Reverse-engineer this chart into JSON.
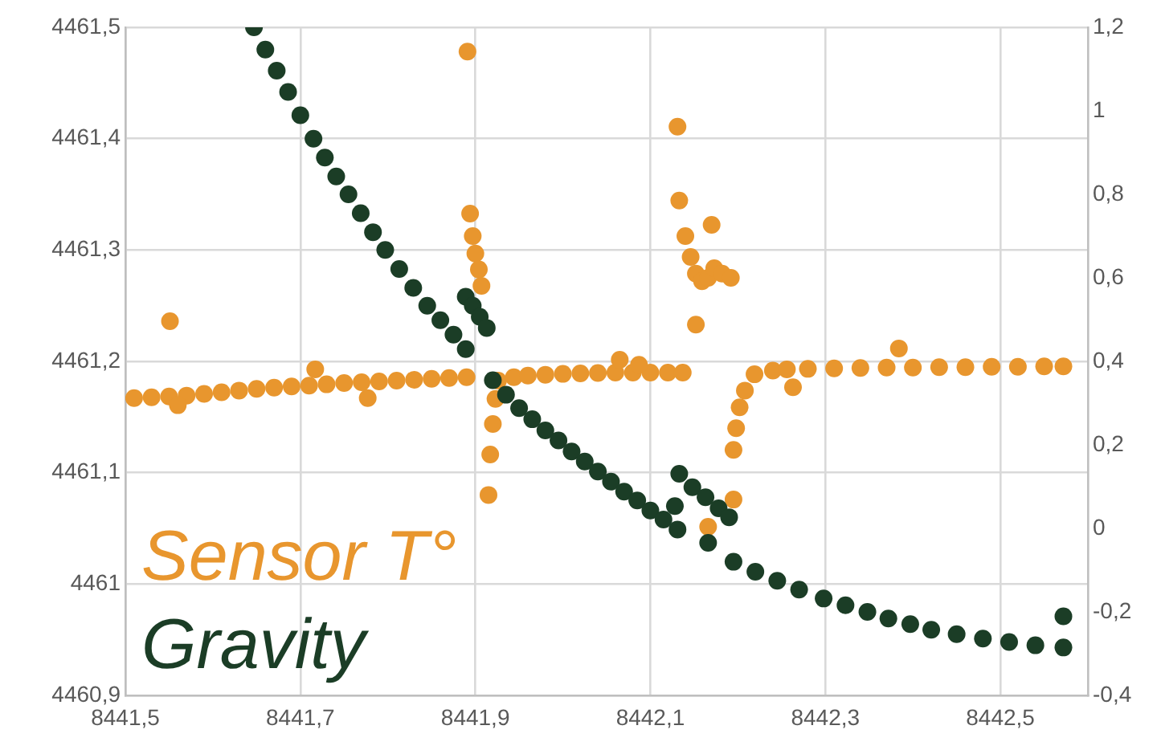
{
  "chart_data": {
    "type": "scatter",
    "marker": "circle",
    "grid": true,
    "xlim": [
      8441.5,
      8442.6
    ],
    "xticks": [
      {
        "value": 8441.5,
        "label": "8441,5"
      },
      {
        "value": 8441.7,
        "label": "8441,7"
      },
      {
        "value": 8441.9,
        "label": "8441,9"
      },
      {
        "value": 8442.1,
        "label": "8442,1"
      },
      {
        "value": 8442.3,
        "label": "8442,3"
      },
      {
        "value": 8442.5,
        "label": "8442,5"
      }
    ],
    "ylim": [
      4460.9,
      4461.5
    ],
    "yticks": [
      {
        "value": 4460.9,
        "label": "4460,9"
      },
      4461,
      {
        "value": 4461.1,
        "label": "4461,1"
      },
      {
        "value": 4461.2,
        "label": "4461,2"
      },
      {
        "value": 4461.3,
        "label": "4461,3"
      },
      {
        "value": 4461.4,
        "label": "4461,4"
      },
      {
        "value": 4461.5,
        "label": "4461,5"
      }
    ],
    "y2lim": [
      -0.4,
      1.2
    ],
    "y2ticks": [
      {
        "value": -0.4,
        "label": "-0,4"
      },
      {
        "value": -0.2,
        "label": "-0,2"
      },
      0,
      {
        "value": 0.2,
        "label": "0,2"
      },
      {
        "value": 0.4,
        "label": "0,4"
      },
      {
        "value": 0.6,
        "label": "0,6"
      },
      {
        "value": 0.8,
        "label": "0,8"
      },
      1,
      {
        "value": 1.2,
        "label": "1,2"
      }
    ],
    "series": [
      {
        "name": "Sensor T°",
        "color": "#e8962e",
        "axis": "y2",
        "x": [
          8441.51,
          8441.53,
          8441.55,
          8441.57,
          8441.59,
          8441.61,
          8441.63,
          8441.65,
          8441.67,
          8441.69,
          8441.71,
          8441.73,
          8441.75,
          8441.77,
          8441.79,
          8441.81,
          8441.83,
          8441.85,
          8441.87,
          8441.89,
          8441.551,
          8441.717,
          8441.777,
          8441.891,
          8441.56,
          8441.894,
          8441.897,
          8441.9,
          8441.904,
          8441.907,
          8441.915,
          8441.917,
          8441.92,
          8441.923,
          8441.926,
          8441.944,
          8441.96,
          8441.98,
          8442.0,
          8442.02,
          8442.04,
          8442.06,
          8442.08,
          8442.1,
          8442.12,
          8442.137,
          8442.065,
          8442.087,
          8442.131,
          8442.133,
          8442.14,
          8442.146,
          8442.152,
          8442.159,
          8442.166,
          8442.173,
          8442.182,
          8442.192,
          8442.17,
          8442.152,
          8442.195,
          8442.166,
          8442.195,
          8442.198,
          8442.202,
          8442.208,
          8442.219,
          8442.24,
          8442.256,
          8442.28,
          8442.31,
          8442.34,
          8442.37,
          8442.4,
          8442.43,
          8442.46,
          8442.49,
          8442.52,
          8442.55,
          8442.572,
          8442.263,
          8442.384
        ],
        "values": [
          0.312,
          0.314,
          0.316,
          0.318,
          0.322,
          0.326,
          0.33,
          0.334,
          0.337,
          0.34,
          0.342,
          0.345,
          0.348,
          0.35,
          0.352,
          0.354,
          0.356,
          0.358,
          0.36,
          0.362,
          0.496,
          0.381,
          0.312,
          1.142,
          0.295,
          0.754,
          0.7,
          0.658,
          0.62,
          0.581,
          0.08,
          0.177,
          0.25,
          0.31,
          0.354,
          0.362,
          0.366,
          0.368,
          0.37,
          0.371,
          0.372,
          0.373,
          0.373,
          0.373,
          0.373,
          0.373,
          0.404,
          0.392,
          0.962,
          0.785,
          0.7,
          0.65,
          0.61,
          0.592,
          0.6,
          0.623,
          0.61,
          0.6,
          0.727,
          0.488,
          0.069,
          0.004,
          0.188,
          0.24,
          0.29,
          0.33,
          0.369,
          0.378,
          0.381,
          0.382,
          0.383,
          0.384,
          0.385,
          0.385,
          0.386,
          0.386,
          0.387,
          0.387,
          0.388,
          0.388,
          0.338,
          0.431
        ]
      },
      {
        "name": "Gravity",
        "color": "#1b3d26",
        "x": [
          8441.647,
          8441.66,
          8441.673,
          8441.686,
          8441.7,
          8441.715,
          8441.728,
          8441.741,
          8441.755,
          8441.769,
          8441.783,
          8441.797,
          8441.813,
          8441.829,
          8441.845,
          8441.86,
          8441.875,
          8441.889,
          8441.889,
          8441.897,
          8441.905,
          8441.913,
          8441.92,
          8441.935,
          8441.95,
          8441.965,
          8441.98,
          8441.995,
          8442.01,
          8442.025,
          8442.04,
          8442.055,
          8442.07,
          8442.085,
          8442.1,
          8442.115,
          8442.131,
          8442.128,
          8442.133,
          8442.148,
          8442.163,
          8442.178,
          8442.19,
          8442.166,
          8442.195,
          8442.22,
          8442.245,
          8442.27,
          8442.298,
          8442.323,
          8442.348,
          8442.372,
          8442.397,
          8442.421,
          8442.45,
          8442.48,
          8442.51,
          8442.54,
          8442.572,
          8442.572
        ],
        "values": [
          4461.5,
          4461.48,
          4461.461,
          4461.442,
          4461.421,
          4461.4,
          4461.383,
          4461.366,
          4461.35,
          4461.333,
          4461.316,
          4461.3,
          4461.283,
          4461.266,
          4461.25,
          4461.237,
          4461.224,
          4461.211,
          4461.258,
          4461.25,
          4461.24,
          4461.23,
          4461.183,
          4461.17,
          4461.158,
          4461.148,
          4461.138,
          4461.129,
          4461.119,
          4461.11,
          4461.101,
          4461.092,
          4461.083,
          4461.075,
          4461.066,
          4461.058,
          4461.049,
          4461.07,
          4461.099,
          4461.087,
          4461.078,
          4461.068,
          4461.06,
          4461.037,
          4461.02,
          4461.011,
          4461.003,
          4460.995,
          4460.987,
          4460.981,
          4460.975,
          4460.969,
          4460.964,
          4460.959,
          4460.955,
          4460.951,
          4460.948,
          4460.945,
          4460.943,
          4460.971
        ]
      }
    ]
  }
}
